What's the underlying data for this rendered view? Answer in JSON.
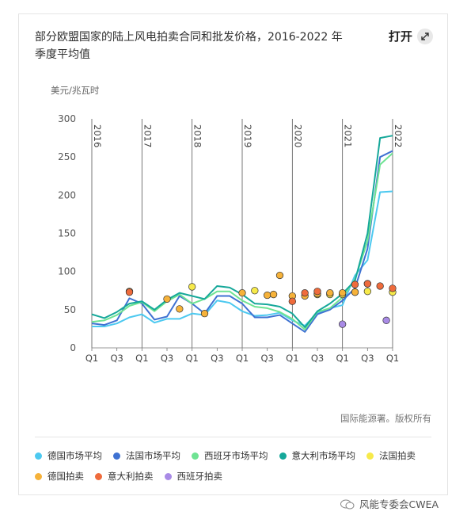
{
  "header": {
    "title": "部分欧盟国家的陆上风电拍卖合同和批发价格，2016-2022 年季度平均值",
    "open_label": "打开"
  },
  "footer": {
    "source": "国际能源署。版权所有",
    "watermark": "风能专委会CWEA"
  },
  "colors": {
    "de_avg": "#4dc9f0",
    "fr_avg": "#3f72d2",
    "es_avg": "#6fe393",
    "it_avg": "#16a89a",
    "fr_auction": "#f7ea4a",
    "de_auction": "#f6b23a",
    "it_auction": "#ef6b3c",
    "es_auction": "#a98be6"
  },
  "chart_data": {
    "type": "line",
    "ylabel": "美元/兆瓦时",
    "ylim": [
      0,
      300
    ],
    "yticks": [
      0,
      50,
      100,
      150,
      200,
      250,
      300
    ],
    "x_ticks": [
      "Q1",
      "Q3",
      "Q1",
      "Q3",
      "Q1",
      "Q3",
      "Q1",
      "Q3",
      "Q1",
      "Q3",
      "Q1",
      "Q3",
      "Q1"
    ],
    "years": [
      "2016",
      "2017",
      "2018",
      "2019",
      "2020",
      "2021",
      "2022"
    ],
    "grid": false,
    "legend": "bottom",
    "series": [
      {
        "name": "德国市场平均",
        "key": "de_avg",
        "values": [
          28,
          28,
          32,
          40,
          44,
          33,
          38,
          38,
          45,
          43,
          62,
          59,
          48,
          42,
          43,
          46,
          36,
          29,
          46,
          52,
          56,
          95,
          115,
          204,
          205
        ]
      },
      {
        "name": "法国市场平均",
        "key": "fr_avg",
        "values": [
          32,
          30,
          36,
          65,
          58,
          37,
          41,
          68,
          58,
          45,
          68,
          68,
          58,
          40,
          40,
          43,
          32,
          21,
          44,
          50,
          62,
          78,
          130,
          250,
          258
        ]
      },
      {
        "name": "西班牙市场平均",
        "key": "es_avg",
        "values": [
          34,
          36,
          43,
          55,
          60,
          48,
          61,
          70,
          58,
          64,
          74,
          74,
          62,
          54,
          52,
          47,
          38,
          24,
          47,
          52,
          66,
          90,
          140,
          240,
          255
        ]
      },
      {
        "name": "意大利市场平均",
        "key": "it_avg",
        "values": [
          44,
          39,
          47,
          58,
          61,
          50,
          63,
          72,
          68,
          64,
          81,
          79,
          70,
          58,
          57,
          54,
          45,
          27,
          48,
          58,
          71,
          88,
          150,
          275,
          278
        ]
      }
    ],
    "auctions": [
      {
        "name": "法国拍卖",
        "key": "fr_auction",
        "points": [
          [
            8,
            80
          ],
          [
            13,
            75
          ],
          [
            18,
            70
          ],
          [
            19,
            70
          ],
          [
            20,
            70
          ],
          [
            21,
            73
          ],
          [
            22,
            74
          ],
          [
            24,
            73
          ]
        ]
      },
      {
        "name": "德国拍卖",
        "key": "de_auction",
        "points": [
          [
            3,
            74
          ],
          [
            6,
            64
          ],
          [
            7,
            51
          ],
          [
            9,
            45
          ],
          [
            12,
            72
          ],
          [
            14,
            69
          ],
          [
            14.5,
            70
          ],
          [
            15,
            95
          ],
          [
            16,
            68
          ],
          [
            17,
            68
          ],
          [
            18,
            71
          ],
          [
            19,
            72
          ],
          [
            20,
            72
          ],
          [
            21,
            73
          ],
          [
            22,
            84
          ]
        ]
      },
      {
        "name": "意大利拍卖",
        "key": "it_auction",
        "points": [
          [
            3,
            73
          ],
          [
            16,
            61
          ],
          [
            17,
            72
          ],
          [
            18,
            74
          ],
          [
            21,
            83
          ],
          [
            22,
            84
          ],
          [
            23,
            81
          ],
          [
            24,
            78
          ]
        ]
      },
      {
        "name": "西班牙拍卖",
        "key": "es_auction",
        "points": [
          [
            20,
            31
          ],
          [
            23.5,
            36
          ]
        ]
      }
    ]
  }
}
